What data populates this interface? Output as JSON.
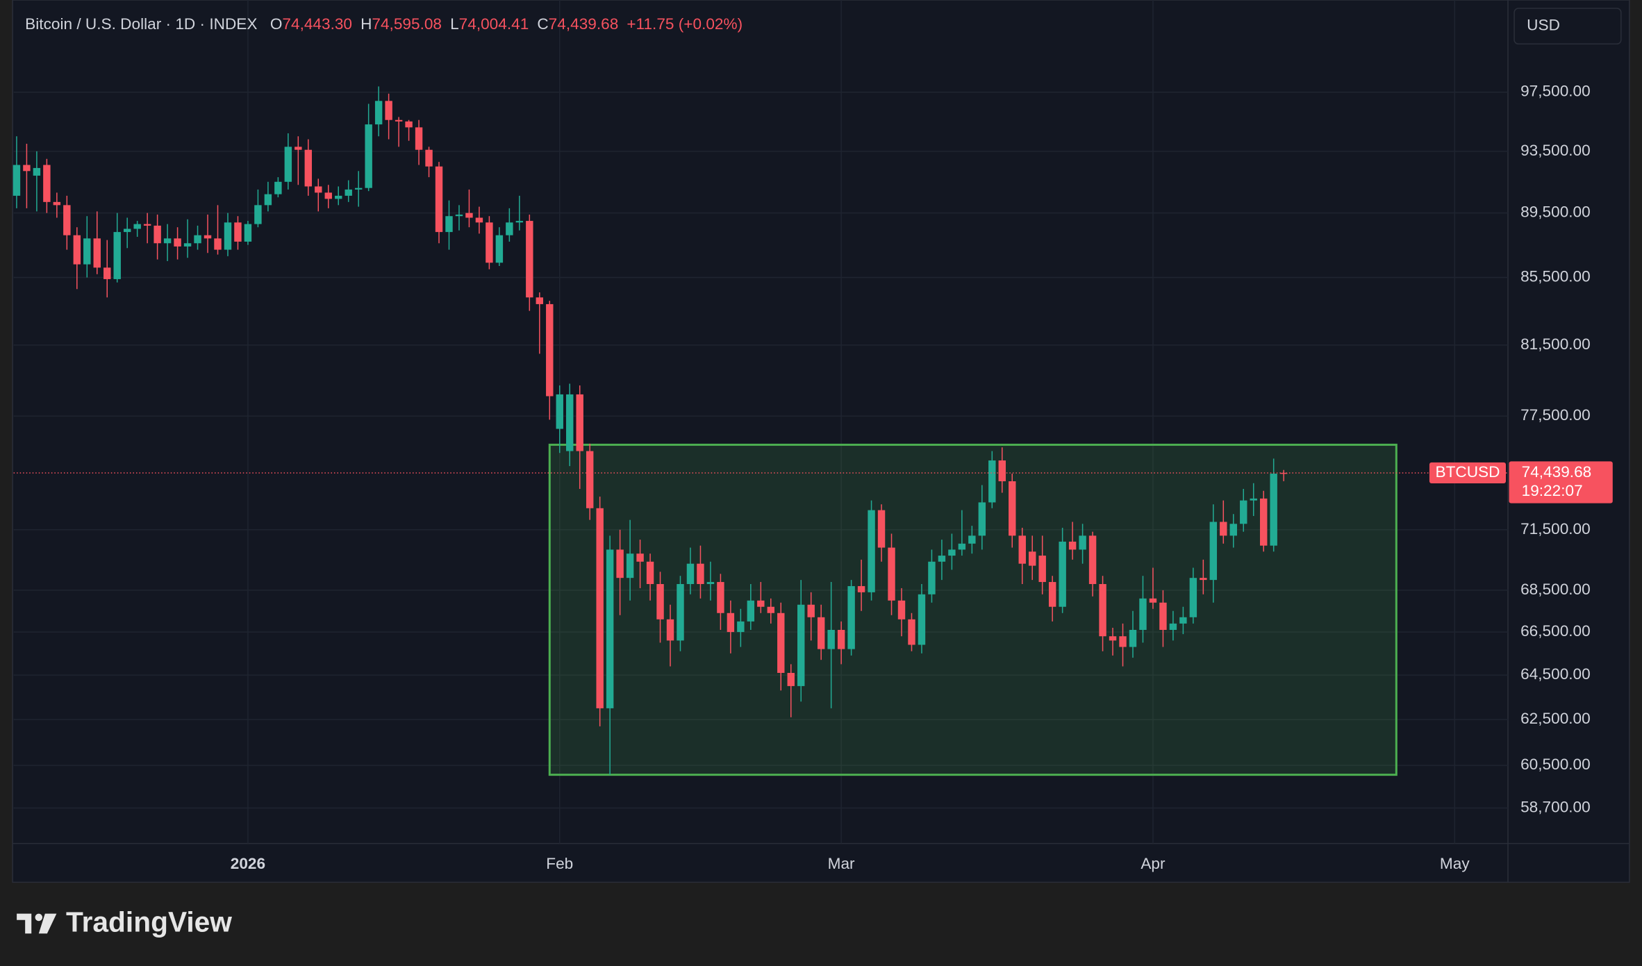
{
  "chart_data": {
    "type": "candlestick",
    "title": "Bitcoin / U.S. Dollar · 1D · INDEX",
    "legend_items": [
      {
        "key": "O",
        "text": "74,443.30"
      },
      {
        "key": "H",
        "text": "74,595.08"
      },
      {
        "key": "L",
        "text": "74,004.41"
      },
      {
        "key": "C",
        "text": "74,439.68"
      }
    ],
    "change": "+11.75 (+0.02%)",
    "currency": "USD",
    "price_tag": {
      "symbol": "BTCUSD",
      "price": "74,439.68",
      "countdown": "19:22:07"
    },
    "up_color": "#22ab94",
    "down_color": "#f7525f",
    "log_scale": true,
    "grid": true,
    "candles": {
      "open": [
        90600,
        92600,
        91900,
        92600,
        90200,
        90000,
        88100,
        86300,
        87900,
        86100,
        85400,
        88300,
        88500,
        88800,
        88700,
        87600,
        87900,
        87400,
        87600,
        88100,
        87900,
        87200,
        88900,
        87700,
        88800,
        90000,
        90700,
        91500,
        93800,
        93600,
        91200,
        90800,
        90400,
        90600,
        91000,
        91100,
        95300,
        96900,
        95600,
        95500,
        95100,
        93600,
        92500,
        88300,
        89300,
        89500,
        89200,
        88900,
        86400,
        88100,
        88900,
        89000,
        84300,
        83900,
        76800,
        75600,
        78700,
        75600,
        72600,
        63000,
        70500,
        69100,
        70300,
        69900,
        68800,
        67100,
        66100,
        68800,
        69800,
        68800,
        68900,
        67400,
        66500,
        67000,
        68000,
        67700,
        67400,
        64600,
        64000,
        67800,
        67200,
        65700,
        66600,
        65700,
        68700,
        68400,
        72500,
        70600,
        68000,
        67100,
        65900,
        68300,
        69900,
        70200,
        70500,
        70800,
        71200,
        72900,
        75100,
        74000,
        71200,
        70400,
        70200,
        68900,
        67700,
        70900,
        70500,
        71200,
        68800,
        66300,
        66300,
        65800,
        66600,
        68100,
        67900,
        66600,
        66900,
        67200,
        69100,
        69000,
        71900,
        71200,
        71800,
        73000,
        73100,
        70700,
        74443.3
      ],
      "high": [
        94500,
        94000,
        93500,
        93000,
        90800,
        90600,
        88600,
        89300,
        89600,
        87800,
        89500,
        89200,
        89000,
        89500,
        89400,
        88800,
        88600,
        89100,
        88700,
        89400,
        90000,
        89500,
        89300,
        89000,
        91000,
        91500,
        91800,
        94700,
        94500,
        94300,
        91700,
        91300,
        91200,
        91600,
        92200,
        96700,
        97900,
        97400,
        95800,
        95600,
        95600,
        93800,
        92800,
        90300,
        90000,
        91000,
        89900,
        89300,
        88600,
        89800,
        90600,
        89400,
        84600,
        84100,
        79200,
        79300,
        79200,
        76000,
        73200,
        71200,
        71500,
        72000,
        71000,
        70300,
        69400,
        67800,
        69200,
        70600,
        70700,
        69900,
        69300,
        68000,
        67600,
        68800,
        68900,
        68100,
        67900,
        65000,
        69000,
        68400,
        67800,
        68900,
        67000,
        69000,
        70000,
        73000,
        72800,
        71300,
        68600,
        67400,
        68800,
        70500,
        71000,
        71300,
        72500,
        71700,
        73800,
        75600,
        75800,
        74400,
        71600,
        71200,
        71200,
        69200,
        71600,
        71900,
        71800,
        71400,
        69200,
        66700,
        66900,
        67500,
        69200,
        69600,
        68500,
        67500,
        67700,
        69600,
        70000,
        72800,
        73000,
        72300,
        73600,
        73900,
        73500,
        75200,
        74595.08
      ],
      "low": [
        89800,
        89800,
        89600,
        89500,
        89200,
        87200,
        84800,
        85500,
        85700,
        84300,
        85200,
        87300,
        88000,
        87600,
        86600,
        86500,
        86600,
        86700,
        87200,
        87000,
        86900,
        86800,
        87200,
        87500,
        88600,
        89600,
        90500,
        91000,
        91300,
        90600,
        89600,
        89800,
        90000,
        90200,
        89900,
        90900,
        94500,
        94300,
        93800,
        94200,
        92600,
        91800,
        87600,
        87200,
        88400,
        88600,
        88200,
        86000,
        86200,
        87700,
        88400,
        83500,
        81000,
        77300,
        75500,
        74800,
        73600,
        72000,
        62200,
        60100,
        67300,
        68000,
        68600,
        68000,
        66000,
        64900,
        65600,
        68300,
        68100,
        68000,
        66600,
        65500,
        65800,
        66600,
        67400,
        66900,
        63800,
        62600,
        63300,
        66100,
        65200,
        63000,
        65000,
        65400,
        67500,
        68000,
        69900,
        67300,
        66300,
        65600,
        65500,
        67900,
        69000,
        69500,
        70200,
        70300,
        70500,
        72600,
        73400,
        70600,
        68800,
        69000,
        68300,
        67000,
        67400,
        70000,
        69800,
        68200,
        65600,
        65400,
        64900,
        65300,
        66000,
        67600,
        65800,
        66100,
        66400,
        66900,
        68300,
        67900,
        70800,
        70600,
        71400,
        72200,
        70400,
        70400,
        74004.41
      ],
      "close": [
        92600,
        92200,
        92400,
        90200,
        90000,
        88100,
        86300,
        87900,
        86100,
        85400,
        88300,
        88500,
        88800,
        88700,
        87600,
        87900,
        87400,
        87600,
        88100,
        87900,
        87200,
        88900,
        87700,
        88800,
        90000,
        90700,
        91500,
        93800,
        93600,
        91200,
        90800,
        90400,
        90600,
        91000,
        91100,
        95300,
        96900,
        95600,
        95500,
        95100,
        93600,
        92500,
        88300,
        89300,
        89400,
        89200,
        88900,
        86400,
        88100,
        88900,
        89000,
        84300,
        83900,
        78600,
        78700,
        78700,
        75600,
        72600,
        63000,
        70500,
        69100,
        70300,
        69900,
        68800,
        67100,
        66100,
        68800,
        69800,
        68800,
        68900,
        67400,
        66500,
        67000,
        68000,
        67700,
        67400,
        64600,
        64000,
        67800,
        67200,
        65700,
        66600,
        65700,
        68700,
        68400,
        72500,
        70600,
        68000,
        67100,
        65900,
        68300,
        69900,
        70200,
        70500,
        70800,
        71200,
        72900,
        75100,
        74000,
        71200,
        69800,
        69700,
        68900,
        67700,
        70900,
        70500,
        71200,
        68800,
        66300,
        66100,
        65800,
        66600,
        68100,
        67900,
        66600,
        66900,
        67200,
        69100,
        69000,
        71900,
        71200,
        71800,
        73000,
        73100,
        70700,
        74400,
        74439.68
      ]
    },
    "range_box": {
      "x": [
        53,
        137.2
      ],
      "y": [
        60100,
        75940
      ],
      "color": "#4caf50"
    },
    "xlim": [
      -0.3,
      148.3
    ],
    "xticks": [
      {
        "value": 23,
        "label": "2026"
      },
      {
        "value": 54,
        "label": "Feb"
      },
      {
        "value": 82,
        "label": "Mar"
      },
      {
        "value": 113,
        "label": "Apr"
      },
      {
        "value": 143,
        "label": "May"
      }
    ],
    "ylim": [
      57240,
      103700
    ],
    "yticks": [
      {
        "value": 97500,
        "label": "97,500.00"
      },
      {
        "value": 93500,
        "label": "93,500.00"
      },
      {
        "value": 89500,
        "label": "89,500.00"
      },
      {
        "value": 85500,
        "label": "85,500.00"
      },
      {
        "value": 81500,
        "label": "81,500.00"
      },
      {
        "value": 77500,
        "label": "77,500.00"
      },
      {
        "value": 71500,
        "label": "71,500.00"
      },
      {
        "value": 68500,
        "label": "68,500.00"
      },
      {
        "value": 66500,
        "label": "66,500.00"
      },
      {
        "value": 64500,
        "label": "64,500.00"
      },
      {
        "value": 62500,
        "label": "62,500.00"
      },
      {
        "value": 60500,
        "label": "60,500.00"
      },
      {
        "value": 58700,
        "label": "58,700.00"
      }
    ]
  },
  "footer": {
    "brand": "TradingView"
  }
}
